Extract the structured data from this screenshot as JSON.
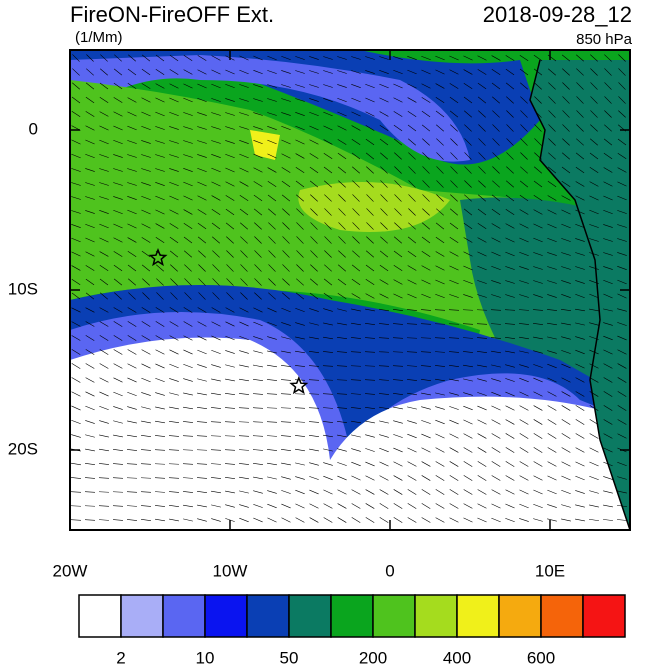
{
  "map": {
    "title": "FireON-FireOFF Ext.",
    "time": "2018-09-28_12",
    "units": "(1/Mm)",
    "level": "850 hPa",
    "lon_range": [
      -20,
      15
    ],
    "lat_range": [
      -25,
      5
    ],
    "lon_ticks": [
      {
        "value": -20,
        "label": "20W"
      },
      {
        "value": -10,
        "label": "10W"
      },
      {
        "value": 0,
        "label": "0"
      },
      {
        "value": 10,
        "label": "10E"
      }
    ],
    "lat_ticks": [
      {
        "value": 0,
        "label": "0"
      },
      {
        "value": -10,
        "label": "10S"
      },
      {
        "value": -20,
        "label": "20S"
      }
    ],
    "markers": [
      {
        "lon": -14.5,
        "lat": -8
      },
      {
        "lon": -5.7,
        "lat": -16
      }
    ],
    "colorbar": {
      "colors": [
        "#ffffff",
        "#a9aef7",
        "#5a66f2",
        "#0a14f0",
        "#0a3fb4",
        "#0b7a62",
        "#0aa51e",
        "#4fc31e",
        "#a5dc1e",
        "#f0f01a",
        "#f5aa0f",
        "#f5640a",
        "#f51414"
      ],
      "labels": [
        "2",
        "10",
        "50",
        "200",
        "400",
        "600"
      ]
    }
  }
}
